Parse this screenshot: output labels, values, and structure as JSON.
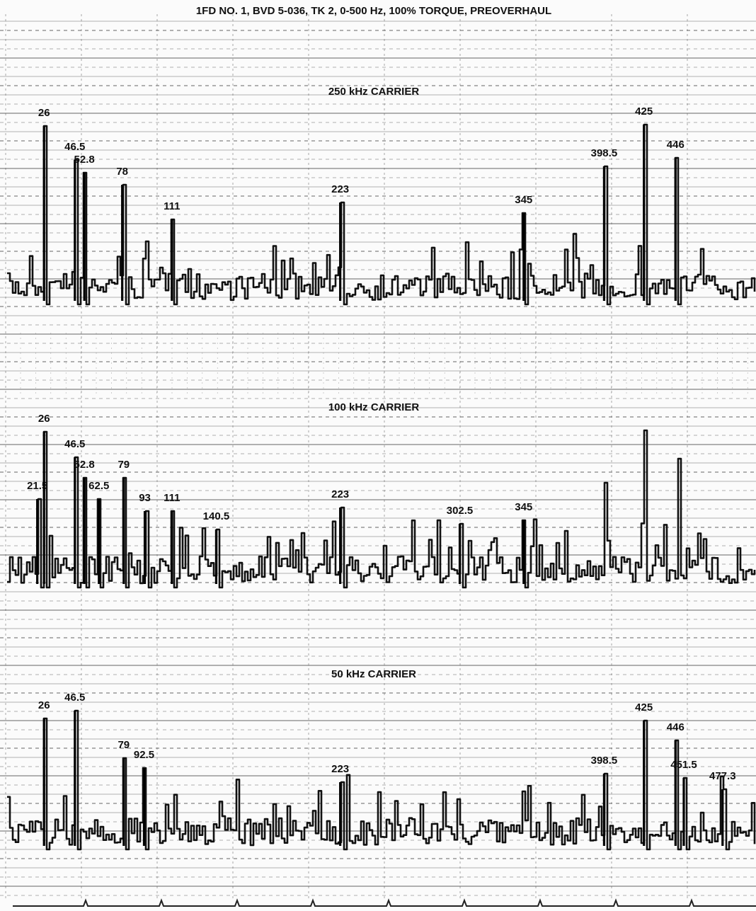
{
  "title": "1FD NO. 1, BVD 5-036, TK 2, 0-500 Hz, 100% TORQUE, PREOVERHAUL",
  "chart_data": [
    {
      "type": "line",
      "title": "250 kHz CARRIER",
      "xlim": [
        0,
        500
      ],
      "x": [
        26,
        46.5,
        52.8,
        78,
        111,
        223,
        345,
        398.5,
        425,
        446
      ]
    },
    {
      "type": "line",
      "title": "100 kHz CARRIER",
      "xlim": [
        0,
        500
      ],
      "x": [
        21.5,
        26,
        46.5,
        52.8,
        62.5,
        79,
        93,
        111,
        140.5,
        223,
        302.5,
        345
      ]
    },
    {
      "type": "line",
      "title": "50 kHz CARRIER",
      "xlim": [
        0,
        500
      ],
      "x": [
        26,
        46.5,
        79,
        92.5,
        223,
        398.5,
        425,
        446,
        451.5,
        477.3
      ]
    }
  ]
}
